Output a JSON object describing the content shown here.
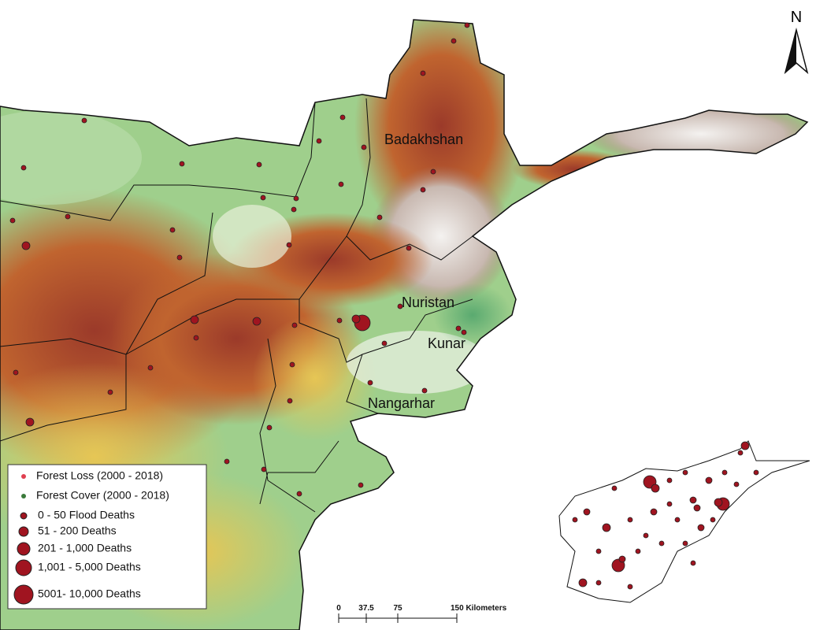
{
  "map": {
    "north": "N",
    "labels": [
      "Badakhshan",
      "Nuristan",
      "Kunar",
      "Nangarhar"
    ],
    "legend": [
      "Forest Loss (2000 - 2018)",
      "Forest Cover (2000 - 2018)",
      "0 - 50 Flood Deaths",
      "51 - 200 Deaths",
      "201 - 1,000 Deaths",
      "1,001 - 5,000 Deaths",
      "5001- 10,000 Deaths"
    ],
    "scale": [
      "0",
      "37.5",
      "75",
      "150 Kilometers"
    ]
  }
}
